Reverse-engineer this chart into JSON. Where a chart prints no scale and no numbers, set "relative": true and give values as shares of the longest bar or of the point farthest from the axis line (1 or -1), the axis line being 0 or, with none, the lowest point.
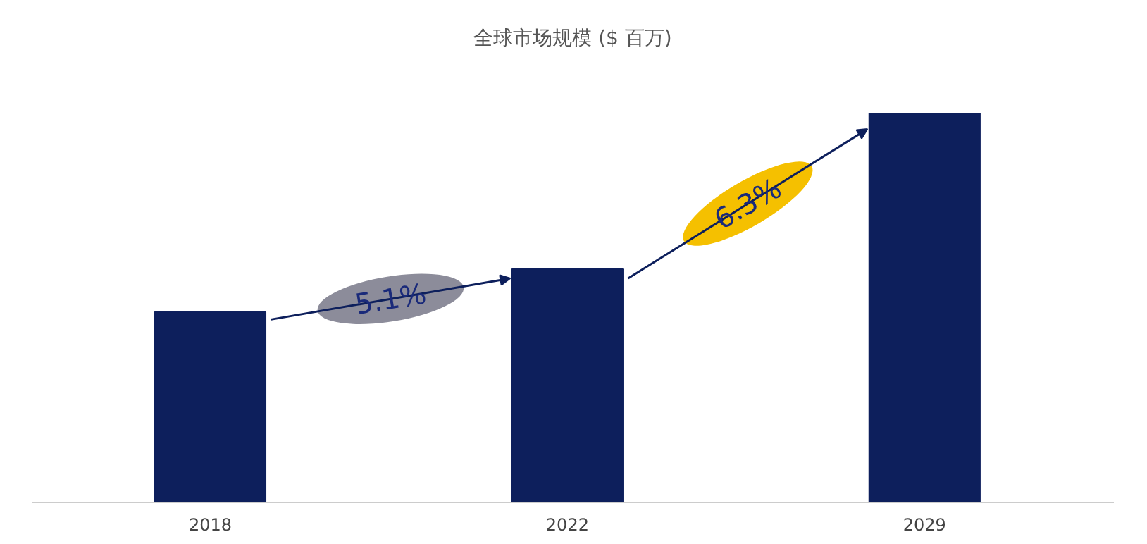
{
  "chart_data": {
    "type": "bar",
    "title": "全球市场规模 ($ 百万)",
    "categories": [
      "2018",
      "2022",
      "2029"
    ],
    "values": [
      0.49,
      0.6,
      1
    ],
    "color": "#0d1f5c",
    "relative": true,
    "grid": false,
    "annotations": [
      "5.1%",
      "6.3%"
    ]
  }
}
